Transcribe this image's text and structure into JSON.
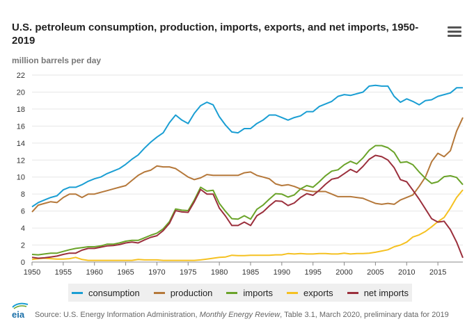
{
  "header": {
    "title": "U.S. petroleum consumption, production, imports, exports, and net imports, 1950-2019",
    "unit_label": "million barrels per day"
  },
  "menu": {
    "icon": "hamburger-menu-icon"
  },
  "footer": {
    "logo_text": "eia",
    "source_prefix": "Source: U.S. Energy Information Administration, ",
    "source_title": "Monthly Energy Review",
    "source_suffix": ", Table 3.1, March 2020, preliminary data for 2019"
  },
  "colors": {
    "consumption": "#1a9ed3",
    "production": "#b5783a",
    "imports": "#6aa329",
    "exports": "#f5c121",
    "net_imports": "#9b2f3c",
    "grid": "#e6e6e6",
    "axis": "#888888",
    "text": "#333333"
  },
  "chart_data": {
    "type": "line",
    "xlabel": "",
    "ylabel": "million barrels per day",
    "xlim": [
      1950,
      2019
    ],
    "ylim": [
      0,
      22
    ],
    "x_ticks": [
      1950,
      1955,
      1960,
      1965,
      1970,
      1975,
      1980,
      1985,
      1990,
      1995,
      2000,
      2005,
      2010,
      2015
    ],
    "y_ticks": [
      0,
      2,
      4,
      6,
      8,
      10,
      12,
      14,
      16,
      18,
      20,
      22
    ],
    "grid": true,
    "legend_position": "bottom",
    "x": [
      1950,
      1951,
      1952,
      1953,
      1954,
      1955,
      1956,
      1957,
      1958,
      1959,
      1960,
      1961,
      1962,
      1963,
      1964,
      1965,
      1966,
      1967,
      1968,
      1969,
      1970,
      1971,
      1972,
      1973,
      1974,
      1975,
      1976,
      1977,
      1978,
      1979,
      1980,
      1981,
      1982,
      1983,
      1984,
      1985,
      1986,
      1987,
      1988,
      1989,
      1990,
      1991,
      1992,
      1993,
      1994,
      1995,
      1996,
      1997,
      1998,
      1999,
      2000,
      2001,
      2002,
      2003,
      2004,
      2005,
      2006,
      2007,
      2008,
      2009,
      2010,
      2011,
      2012,
      2013,
      2014,
      2015,
      2016,
      2017,
      2018,
      2019
    ],
    "series": [
      {
        "name": "consumption",
        "key": "consumption",
        "values": [
          6.5,
          7.0,
          7.3,
          7.6,
          7.8,
          8.5,
          8.8,
          8.8,
          9.1,
          9.5,
          9.8,
          10.0,
          10.4,
          10.7,
          11.0,
          11.5,
          12.1,
          12.6,
          13.4,
          14.1,
          14.7,
          15.2,
          16.4,
          17.3,
          16.7,
          16.3,
          17.5,
          18.4,
          18.8,
          18.5,
          17.1,
          16.1,
          15.3,
          15.2,
          15.7,
          15.7,
          16.3,
          16.7,
          17.3,
          17.3,
          17.0,
          16.7,
          17.0,
          17.2,
          17.7,
          17.7,
          18.3,
          18.6,
          18.9,
          19.5,
          19.7,
          19.6,
          19.8,
          20.0,
          20.7,
          20.8,
          20.7,
          20.7,
          19.5,
          18.8,
          19.2,
          18.9,
          18.5,
          19.0,
          19.1,
          19.5,
          19.7,
          19.9,
          20.5,
          20.5
        ]
      },
      {
        "name": "production",
        "key": "production",
        "values": [
          5.9,
          6.7,
          6.9,
          7.1,
          7.0,
          7.6,
          8.0,
          8.0,
          7.6,
          8.0,
          8.0,
          8.2,
          8.4,
          8.6,
          8.8,
          9.0,
          9.6,
          10.2,
          10.6,
          10.8,
          11.3,
          11.2,
          11.2,
          11.0,
          10.5,
          10.0,
          9.7,
          9.9,
          10.3,
          10.2,
          10.2,
          10.2,
          10.2,
          10.2,
          10.5,
          10.6,
          10.2,
          10.0,
          9.8,
          9.2,
          9.0,
          9.1,
          8.9,
          8.6,
          8.4,
          8.3,
          8.3,
          8.3,
          8.0,
          7.7,
          7.7,
          7.7,
          7.6,
          7.5,
          7.2,
          6.9,
          6.8,
          6.9,
          6.8,
          7.3,
          7.6,
          7.9,
          8.9,
          10.0,
          11.8,
          12.8,
          12.4,
          13.1,
          15.4,
          17.0
        ]
      },
      {
        "name": "imports",
        "key": "imports",
        "values": [
          0.9,
          0.85,
          0.95,
          1.05,
          1.05,
          1.25,
          1.45,
          1.6,
          1.7,
          1.8,
          1.8,
          1.9,
          2.1,
          2.1,
          2.25,
          2.45,
          2.55,
          2.55,
          2.85,
          3.15,
          3.4,
          3.9,
          4.75,
          6.25,
          6.1,
          6.05,
          7.3,
          8.8,
          8.35,
          8.45,
          6.9,
          5.95,
          5.1,
          5.05,
          5.45,
          5.05,
          6.2,
          6.7,
          7.4,
          8.05,
          8.0,
          7.65,
          7.9,
          8.6,
          9.0,
          8.8,
          9.45,
          10.15,
          10.7,
          10.85,
          11.45,
          11.85,
          11.55,
          12.25,
          13.15,
          13.7,
          13.7,
          13.45,
          12.9,
          11.7,
          11.8,
          11.45,
          10.6,
          9.85,
          9.25,
          9.45,
          10.05,
          10.15,
          9.95,
          9.1
        ]
      },
      {
        "name": "exports",
        "key": "exports",
        "values": [
          0.3,
          0.4,
          0.45,
          0.4,
          0.35,
          0.35,
          0.4,
          0.55,
          0.3,
          0.2,
          0.2,
          0.2,
          0.2,
          0.2,
          0.2,
          0.2,
          0.2,
          0.3,
          0.25,
          0.25,
          0.25,
          0.2,
          0.2,
          0.2,
          0.2,
          0.2,
          0.2,
          0.25,
          0.35,
          0.45,
          0.55,
          0.6,
          0.8,
          0.75,
          0.75,
          0.8,
          0.8,
          0.8,
          0.8,
          0.85,
          0.85,
          1.0,
          0.95,
          1.0,
          0.95,
          0.95,
          1.0,
          1.0,
          0.95,
          0.95,
          1.05,
          0.95,
          1.0,
          1.0,
          1.05,
          1.15,
          1.3,
          1.45,
          1.8,
          2.0,
          2.35,
          2.95,
          3.2,
          3.6,
          4.15,
          4.75,
          5.25,
          6.35,
          7.6,
          8.5
        ]
      },
      {
        "name": "net imports",
        "key": "net_imports",
        "values": [
          0.55,
          0.45,
          0.5,
          0.6,
          0.7,
          0.9,
          1.05,
          1.05,
          1.4,
          1.6,
          1.6,
          1.75,
          1.9,
          1.95,
          2.05,
          2.25,
          2.35,
          2.25,
          2.6,
          2.9,
          3.1,
          3.7,
          4.55,
          6.05,
          5.9,
          5.85,
          7.1,
          8.55,
          8.0,
          8.0,
          6.35,
          5.4,
          4.3,
          4.3,
          4.7,
          4.3,
          5.45,
          5.9,
          6.6,
          7.2,
          7.15,
          6.65,
          6.95,
          7.6,
          8.05,
          7.85,
          8.45,
          9.15,
          9.75,
          9.9,
          10.4,
          10.9,
          10.55,
          11.25,
          12.1,
          12.55,
          12.4,
          12.0,
          11.1,
          9.7,
          9.45,
          8.45,
          7.4,
          6.25,
          5.1,
          4.7,
          4.8,
          3.8,
          2.35,
          0.5
        ]
      }
    ]
  }
}
